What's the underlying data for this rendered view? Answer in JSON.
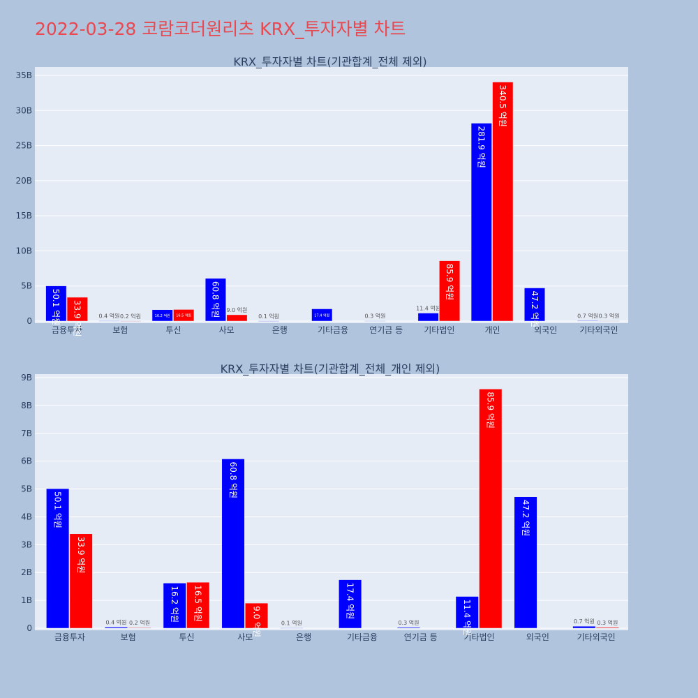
{
  "page": {
    "title": "2022-03-28 코람코더원리츠 KRX_투자자별 차트",
    "title_color": "#e8484f",
    "background": "#b0c4de"
  },
  "colors": {
    "series_a": "#0000ff",
    "series_b": "#ff0000",
    "plot_bg": "#e5ecf6"
  },
  "chart_data": [
    {
      "type": "bar",
      "title": "KRX_투자자별 차트(기관합계_전체 제외)",
      "categories": [
        "금융투자",
        "보험",
        "투신",
        "사모",
        "은행",
        "기타금융",
        "연기금 등",
        "기타법인",
        "개인",
        "외국인",
        "기타외국인"
      ],
      "ylim": [
        0,
        35
      ],
      "yunit": "B",
      "yticks": [
        0,
        5,
        10,
        15,
        20,
        25,
        30,
        35
      ],
      "ytick_labels": [
        "0",
        "5B",
        "10B",
        "15B",
        "20B",
        "25B",
        "30B",
        "35B"
      ],
      "grid": true,
      "series": [
        {
          "color": "#0000ff",
          "values": [
            5.01,
            0.04,
            1.62,
            6.08,
            0.01,
            1.74,
            0.03,
            1.14,
            28.19,
            4.72,
            0.07
          ],
          "labels": [
            "50.1 억원",
            "0.4 억원",
            "16.2 억원",
            "60.8 억원",
            "0.1 억원",
            "17.4 억원",
            "0.3 억원",
            "11.4 억원",
            "281.9 억원",
            "47.2 억원",
            "0.7 억원"
          ]
        },
        {
          "color": "#ff0000",
          "values": [
            3.39,
            0.02,
            1.65,
            0.9,
            0,
            0,
            0,
            8.59,
            34.05,
            0,
            0.03
          ],
          "labels": [
            "33.9 억원",
            "0.2 억원",
            "16.5 억원",
            "9.0 억원",
            "",
            "",
            "",
            "85.9 억원",
            "340.5 억원",
            "",
            "0.3 억원"
          ]
        }
      ]
    },
    {
      "type": "bar",
      "title": "KRX_투자자별 차트(기관합계_전체_개인 제외)",
      "categories": [
        "금융투자",
        "보험",
        "투신",
        "사모",
        "은행",
        "기타금융",
        "연기금 등",
        "기타법인",
        "외국인",
        "기타외국인"
      ],
      "ylim": [
        0,
        9
      ],
      "yunit": "B",
      "yticks": [
        0,
        1,
        2,
        3,
        4,
        5,
        6,
        7,
        8,
        9
      ],
      "ytick_labels": [
        "0",
        "1B",
        "2B",
        "3B",
        "4B",
        "5B",
        "6B",
        "7B",
        "8B",
        "9B"
      ],
      "grid": true,
      "series": [
        {
          "color": "#0000ff",
          "values": [
            5.01,
            0.04,
            1.62,
            6.08,
            0.01,
            1.74,
            0.03,
            1.14,
            4.72,
            0.07
          ],
          "labels": [
            "50.1 억원",
            "0.4 억원",
            "16.2 억원",
            "60.8 억원",
            "0.1 억원",
            "17.4 억원",
            "0.3 억원",
            "11.4 억원",
            "47.2 억원",
            "0.7 억원"
          ]
        },
        {
          "color": "#ff0000",
          "values": [
            3.39,
            0.02,
            1.65,
            0.9,
            0,
            0,
            0,
            8.59,
            0,
            0.03
          ],
          "labels": [
            "33.9 억원",
            "0.2 억원",
            "16.5 억원",
            "9.0 억원",
            "",
            "",
            "",
            "85.9 억원",
            "",
            "0.3 억원"
          ]
        }
      ]
    }
  ]
}
